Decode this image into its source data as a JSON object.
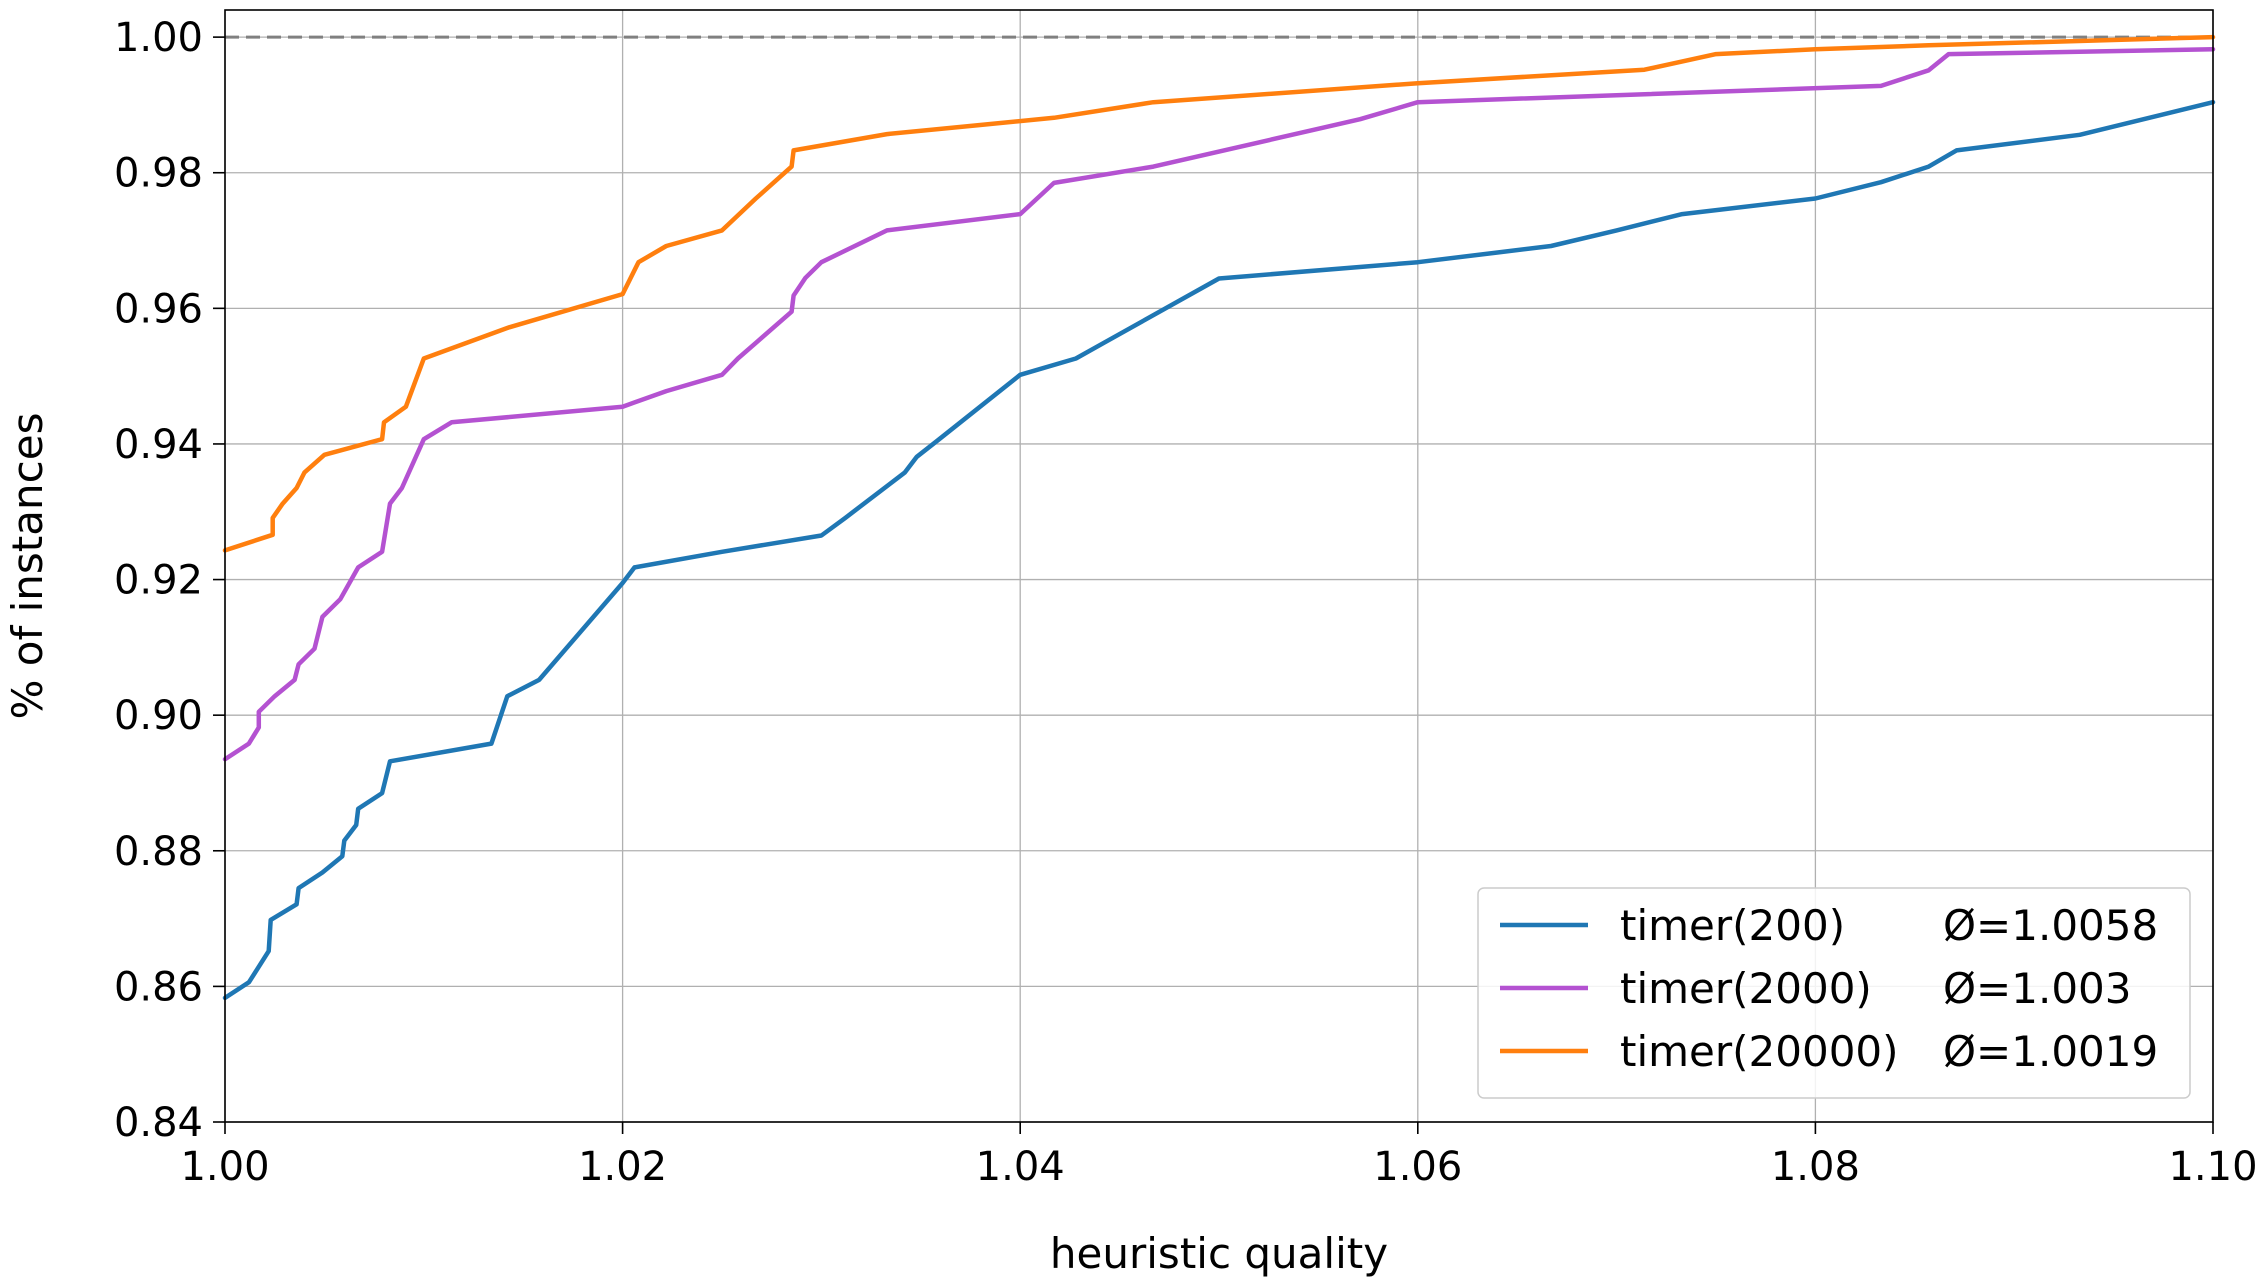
{
  "chart_data": {
    "type": "line",
    "xlabel": "heuristic quality",
    "ylabel": "% of instances",
    "xlim": [
      1.0,
      1.1
    ],
    "ylim": [
      0.84,
      1.004
    ],
    "xticks": [
      "1.00",
      "1.02",
      "1.04",
      "1.06",
      "1.08",
      "1.10"
    ],
    "yticks": [
      "0.84",
      "0.86",
      "0.88",
      "0.90",
      "0.92",
      "0.94",
      "0.96",
      "0.98",
      "1.00"
    ],
    "grid": true,
    "reference_line": {
      "y": 1.0,
      "style": "dashed",
      "color": "#808080"
    },
    "legend": {
      "position": "bottom-right",
      "entries": [
        {
          "name": "timer(200)",
          "stat": "Ø=1.0058",
          "color": "#1f77b4"
        },
        {
          "name": "timer(2000)",
          "stat": "Ø=1.003",
          "color": "#b452d1"
        },
        {
          "name": "timer(20000)",
          "stat": "Ø=1.0019",
          "color": "#ff7f0e"
        }
      ]
    },
    "series": [
      {
        "name": "timer(200)",
        "color": "#1f77b4",
        "points": [
          [
            1.0,
            0.8583
          ],
          [
            1.0012,
            0.8606
          ],
          [
            1.0022,
            0.8652
          ],
          [
            1.0023,
            0.8698
          ],
          [
            1.0036,
            0.8721
          ],
          [
            1.0037,
            0.8745
          ],
          [
            1.0049,
            0.8768
          ],
          [
            1.0059,
            0.8792
          ],
          [
            1.006,
            0.8815
          ],
          [
            1.0066,
            0.8838
          ],
          [
            1.0067,
            0.8862
          ],
          [
            1.0079,
            0.8885
          ],
          [
            1.0083,
            0.8932
          ],
          [
            1.0134,
            0.8958
          ],
          [
            1.0142,
            0.9028
          ],
          [
            1.0158,
            0.9052
          ],
          [
            1.02,
            0.9195
          ],
          [
            1.0206,
            0.9218
          ],
          [
            1.025,
            0.9241
          ],
          [
            1.03,
            0.9265
          ],
          [
            1.0312,
            0.9291
          ],
          [
            1.0342,
            0.9358
          ],
          [
            1.0348,
            0.9381
          ],
          [
            1.0358,
            0.9404
          ],
          [
            1.04,
            0.9502
          ],
          [
            1.0428,
            0.9526
          ],
          [
            1.0442,
            0.9549
          ],
          [
            1.05,
            0.9644
          ],
          [
            1.06,
            0.9668
          ],
          [
            1.0667,
            0.9692
          ],
          [
            1.07,
            0.9715
          ],
          [
            1.0733,
            0.9739
          ],
          [
            1.08,
            0.9762
          ],
          [
            1.0833,
            0.9786
          ],
          [
            1.0857,
            0.9809
          ],
          [
            1.0871,
            0.9833
          ],
          [
            1.0933,
            0.9856
          ],
          [
            1.1,
            0.9904
          ]
        ]
      },
      {
        "name": "timer(2000)",
        "color": "#b452d1",
        "points": [
          [
            1.0,
            0.8935
          ],
          [
            1.0012,
            0.8958
          ],
          [
            1.0017,
            0.8982
          ],
          [
            1.0017,
            0.9005
          ],
          [
            1.0025,
            0.9028
          ],
          [
            1.0035,
            0.9052
          ],
          [
            1.0037,
            0.9075
          ],
          [
            1.0045,
            0.9098
          ],
          [
            1.0049,
            0.9145
          ],
          [
            1.0058,
            0.9171
          ],
          [
            1.0067,
            0.9218
          ],
          [
            1.0079,
            0.9241
          ],
          [
            1.0083,
            0.9312
          ],
          [
            1.0089,
            0.9335
          ],
          [
            1.01,
            0.9407
          ],
          [
            1.0114,
            0.9432
          ],
          [
            1.02,
            0.9455
          ],
          [
            1.0222,
            0.9478
          ],
          [
            1.025,
            0.9502
          ],
          [
            1.0258,
            0.9526
          ],
          [
            1.0267,
            0.9549
          ],
          [
            1.0285,
            0.9595
          ],
          [
            1.0286,
            0.9619
          ],
          [
            1.0292,
            0.9645
          ],
          [
            1.03,
            0.9668
          ],
          [
            1.0333,
            0.9715
          ],
          [
            1.04,
            0.9739
          ],
          [
            1.0417,
            0.9785
          ],
          [
            1.0467,
            0.9809
          ],
          [
            1.0571,
            0.9879
          ],
          [
            1.06,
            0.9904
          ],
          [
            1.0833,
            0.9928
          ],
          [
            1.0857,
            0.9951
          ],
          [
            1.0867,
            0.9975
          ],
          [
            1.1,
            0.9982
          ]
        ]
      },
      {
        "name": "timer(20000)",
        "color": "#ff7f0e",
        "points": [
          [
            1.0,
            0.9243
          ],
          [
            1.0024,
            0.9266
          ],
          [
            1.0024,
            0.9291
          ],
          [
            1.0029,
            0.9312
          ],
          [
            1.0036,
            0.9335
          ],
          [
            1.004,
            0.9358
          ],
          [
            1.005,
            0.9384
          ],
          [
            1.0079,
            0.9407
          ],
          [
            1.008,
            0.9432
          ],
          [
            1.0091,
            0.9455
          ],
          [
            1.01,
            0.9526
          ],
          [
            1.0143,
            0.9572
          ],
          [
            1.02,
            0.9621
          ],
          [
            1.0208,
            0.9668
          ],
          [
            1.0222,
            0.9692
          ],
          [
            1.025,
            0.9715
          ],
          [
            1.0267,
            0.9762
          ],
          [
            1.0285,
            0.9809
          ],
          [
            1.0286,
            0.9833
          ],
          [
            1.0333,
            0.9857
          ],
          [
            1.0417,
            0.9881
          ],
          [
            1.0467,
            0.9904
          ],
          [
            1.06,
            0.9932
          ],
          [
            1.0714,
            0.9952
          ],
          [
            1.075,
            0.9975
          ],
          [
            1.08,
            0.9982
          ],
          [
            1.0857,
            0.9988
          ],
          [
            1.1,
            1.0
          ]
        ]
      }
    ]
  }
}
